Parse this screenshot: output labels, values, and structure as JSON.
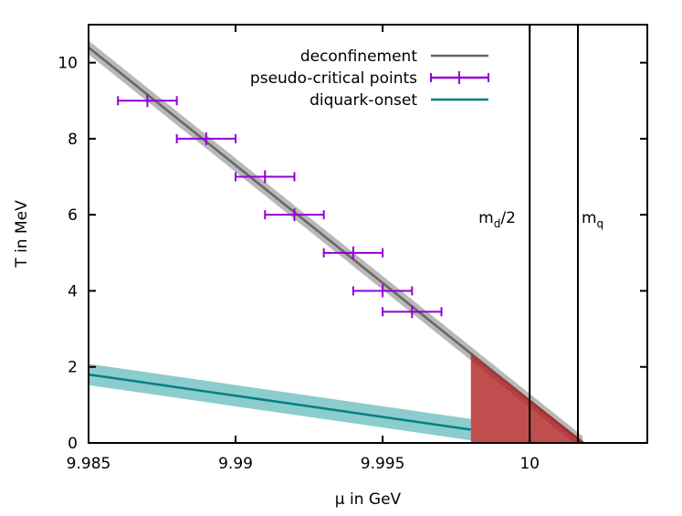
{
  "chart_data": {
    "type": "line",
    "xlabel": "μ in GeV",
    "ylabel": "T in MeV",
    "xlim": [
      9.985,
      10.004
    ],
    "ylim": [
      0,
      11
    ],
    "xticks": [
      {
        "v": 9.985,
        "label": "9.985"
      },
      {
        "v": 9.99,
        "label": "9.99"
      },
      {
        "v": 9.995,
        "label": "9.995"
      },
      {
        "v": 10.0,
        "label": "10"
      }
    ],
    "yticks": [
      {
        "v": 0,
        "label": "0"
      },
      {
        "v": 2,
        "label": "2"
      },
      {
        "v": 4,
        "label": "4"
      },
      {
        "v": 6,
        "label": "6"
      },
      {
        "v": 8,
        "label": "8"
      },
      {
        "v": 10,
        "label": "10"
      }
    ],
    "legend_position": "top-right",
    "series": [
      {
        "name": "deconfinement",
        "color": "#666666",
        "band_color": "#b0b0b0",
        "x": [
          9.985,
          10.0018
        ],
        "y": [
          10.4,
          0
        ],
        "band": 0.18
      },
      {
        "name": "pseudo-critical points",
        "color": "#9400d3",
        "x": [
          9.987,
          9.989,
          9.991,
          9.992,
          9.994,
          9.995,
          9.996
        ],
        "y": [
          9.0,
          8.0,
          7.0,
          6.0,
          5.0,
          4.0,
          3.45
        ],
        "xerr": 0.001
      },
      {
        "name": "diquark-onset",
        "color": "#008080",
        "band_color": "#7fc6c6",
        "x": [
          9.985,
          9.998
        ],
        "y": [
          1.8,
          0.35
        ],
        "band": 0.28
      }
    ],
    "region": {
      "color": "#b22222",
      "x": [
        9.998,
        9.998,
        10.0019
      ],
      "y": [
        2.35,
        0,
        0
      ]
    },
    "vlines": [
      {
        "x": 10.0,
        "label_main": "m",
        "label_sub": "d",
        "label_tail": "/2"
      },
      {
        "x": 10.00164,
        "label_main": "m",
        "label_sub": "q",
        "label_tail": ""
      }
    ]
  }
}
